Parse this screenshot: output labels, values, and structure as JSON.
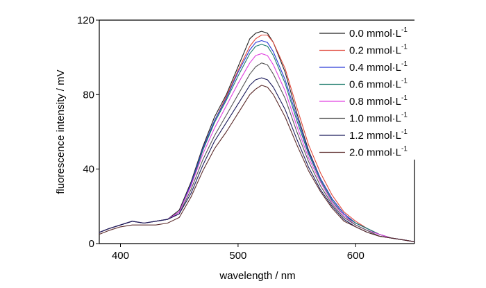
{
  "chart_data": {
    "type": "line",
    "title": "",
    "xlabel": "wavelength / nm",
    "ylabel": "fluorescence intensity / mV",
    "xlim": [
      382,
      650
    ],
    "ylim": [
      0,
      120
    ],
    "x_ticks": [
      400,
      500,
      600
    ],
    "y_ticks": [
      0,
      40,
      80,
      120
    ],
    "grid": false,
    "legend_position": "top-right",
    "unit_text": "mmol·L",
    "unit_sup": "-1",
    "x": [
      382,
      390,
      400,
      410,
      420,
      430,
      440,
      450,
      460,
      470,
      480,
      490,
      500,
      510,
      515,
      520,
      525,
      530,
      540,
      550,
      560,
      570,
      580,
      590,
      600,
      610,
      620,
      630,
      640,
      650
    ],
    "series": [
      {
        "name": "0.0",
        "color": "#222222",
        "values": [
          6,
          8,
          10,
          12,
          11,
          12,
          13,
          18,
          33,
          52,
          68,
          80,
          95,
          110,
          113,
          114,
          113,
          108,
          92,
          70,
          50,
          35,
          24,
          16,
          11,
          8,
          5,
          3,
          2,
          1
        ]
      },
      {
        "name": "0.2",
        "color": "#e0473a",
        "values": [
          6,
          8,
          10,
          12,
          11,
          12,
          13,
          17,
          32,
          51,
          66,
          79,
          93,
          106,
          110,
          112,
          112,
          108,
          94,
          73,
          53,
          38,
          26,
          17,
          12,
          8,
          5,
          3,
          2,
          1
        ]
      },
      {
        "name": "0.4",
        "color": "#2a3bd6",
        "values": [
          6,
          8,
          10,
          12,
          11,
          12,
          13,
          17,
          32,
          51,
          66,
          78,
          92,
          104,
          108,
          109,
          108,
          103,
          88,
          68,
          49,
          35,
          24,
          16,
          11,
          8,
          5,
          3,
          2,
          1
        ]
      },
      {
        "name": "0.6",
        "color": "#1a7a6a",
        "values": [
          6,
          8,
          10,
          12,
          11,
          12,
          13,
          17,
          31,
          50,
          65,
          77,
          90,
          102,
          106,
          107,
          106,
          101,
          86,
          66,
          48,
          34,
          23,
          15,
          11,
          8,
          5,
          3,
          2,
          1
        ]
      },
      {
        "name": "0.8",
        "color": "#e040e0",
        "values": [
          6,
          8,
          10,
          12,
          11,
          12,
          13,
          17,
          31,
          48,
          62,
          74,
          86,
          97,
          101,
          102,
          101,
          96,
          82,
          63,
          46,
          33,
          22,
          15,
          10,
          7,
          5,
          3,
          2,
          1
        ]
      },
      {
        "name": "1.0",
        "color": "#555555",
        "values": [
          6,
          8,
          10,
          12,
          11,
          12,
          13,
          16,
          29,
          45,
          58,
          69,
          80,
          91,
          95,
          97,
          96,
          91,
          78,
          60,
          44,
          31,
          21,
          14,
          10,
          7,
          4,
          3,
          2,
          1
        ]
      },
      {
        "name": "1.2",
        "color": "#1a1a5a",
        "values": [
          6,
          8,
          10,
          12,
          11,
          12,
          13,
          16,
          27,
          42,
          55,
          65,
          75,
          85,
          88,
          89,
          88,
          84,
          72,
          56,
          41,
          29,
          20,
          13,
          9,
          6,
          4,
          3,
          2,
          1
        ]
      },
      {
        "name": "2.0",
        "color": "#5a2a2a",
        "values": [
          5,
          7,
          9,
          10,
          10,
          10,
          11,
          14,
          25,
          39,
          51,
          60,
          70,
          80,
          83,
          85,
          84,
          80,
          68,
          53,
          39,
          28,
          19,
          12,
          9,
          6,
          4,
          3,
          2,
          1
        ]
      }
    ]
  }
}
